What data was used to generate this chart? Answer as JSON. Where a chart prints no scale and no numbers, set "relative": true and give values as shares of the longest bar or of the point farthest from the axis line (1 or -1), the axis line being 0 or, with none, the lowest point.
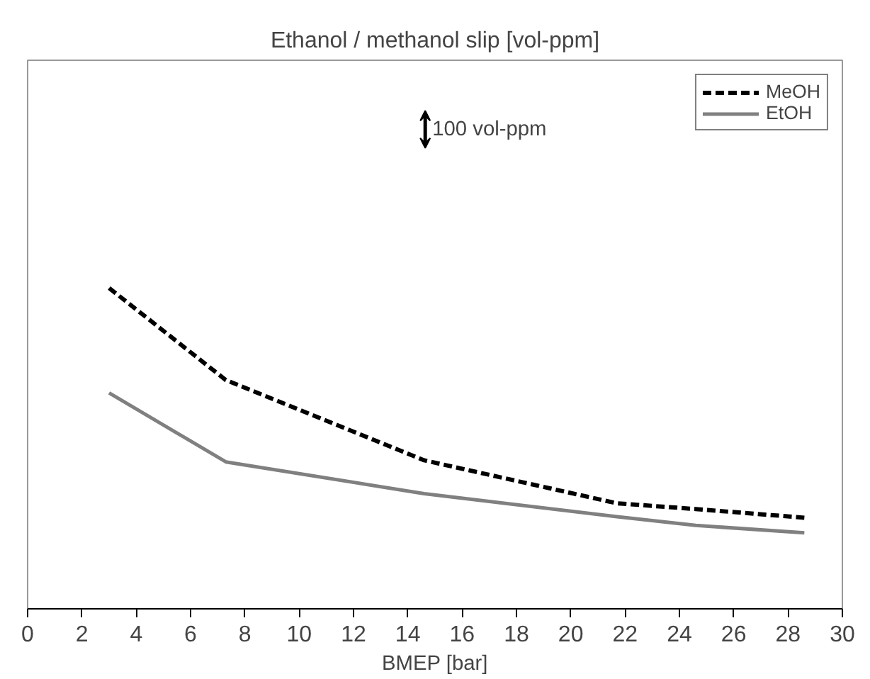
{
  "chart_data": {
    "type": "line",
    "title": "Ethanol / methanol slip [vol-ppm]",
    "xlabel": "BMEP [bar]",
    "relative": true,
    "xlim": [
      0,
      30
    ],
    "xticks": [
      0,
      2,
      4,
      6,
      8,
      10,
      12,
      14,
      16,
      18,
      20,
      22,
      24,
      26,
      28,
      30
    ],
    "series": [
      {
        "name": "MeOH",
        "color": "#000000",
        "line_style": "dashed",
        "x": [
          3.0,
          7.3,
          14.6,
          21.7,
          24.6,
          28.6
        ],
        "values": [
          1,
          0.713,
          0.463,
          0.329,
          0.311,
          0.284
        ]
      },
      {
        "name": "EtOH",
        "color": "#808080",
        "line_style": "solid",
        "x": [
          3.0,
          7.3,
          14.6,
          21.7,
          24.6,
          28.6
        ],
        "values": [
          0.673,
          0.458,
          0.359,
          0.287,
          0.26,
          0.237
        ]
      }
    ],
    "annotations": [
      "100 vol-ppm"
    ],
    "legend": "top right",
    "grid": false,
    "marker": "none"
  }
}
